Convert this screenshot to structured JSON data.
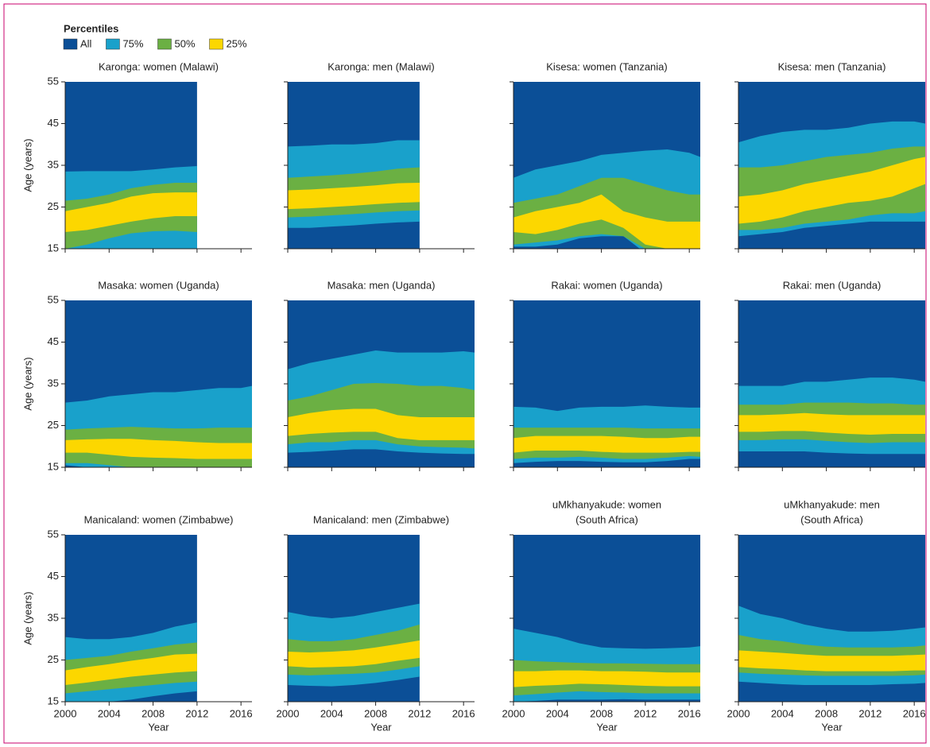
{
  "legend": {
    "title": "Percentiles",
    "series": [
      {
        "name": "All",
        "color": "#0b4f97"
      },
      {
        "name": "75%",
        "color": "#19a1cb"
      },
      {
        "name": "50%",
        "color": "#6bb043"
      },
      {
        "name": "25%",
        "color": "#fcd700"
      }
    ]
  },
  "chart_data": [
    {
      "type": "area",
      "title": "Karonga: women (Malawi)",
      "ylabel": "Age (years)",
      "x": [
        2000,
        2002,
        2004,
        2006,
        2008,
        2010,
        2012
      ],
      "xlim": [
        2000,
        2017
      ],
      "ylim": [
        15,
        55
      ],
      "yticks": [
        15,
        25,
        35,
        45,
        55
      ],
      "bands": [
        {
          "low": [
            13,
            13,
            13.5,
            14,
            14.5,
            14.5,
            14.5
          ],
          "high": [
            33.5,
            33.6,
            33.6,
            33.6,
            34,
            34.5,
            34.8
          ]
        },
        {
          "low": [
            15,
            16,
            17.5,
            18.7,
            19.2,
            19.3,
            19
          ],
          "high": [
            26.5,
            27,
            28,
            29.5,
            30.3,
            30.8,
            30.8
          ]
        },
        {
          "low": [
            19,
            19.5,
            20.5,
            21.5,
            22.3,
            22.8,
            22.8
          ],
          "high": [
            24,
            25,
            26,
            27.5,
            28.3,
            28.5,
            28.5
          ]
        }
      ]
    },
    {
      "type": "area",
      "title": "Karonga: men (Malawi)",
      "x": [
        2000,
        2002,
        2004,
        2006,
        2008,
        2010,
        2012
      ],
      "xlim": [
        2000,
        2017
      ],
      "ylim": [
        15,
        55
      ],
      "bands": [
        {
          "low": [
            20,
            20,
            20.3,
            20.6,
            21,
            21.3,
            21.5
          ],
          "high": [
            39.5,
            39.7,
            40,
            40,
            40.3,
            41,
            41
          ]
        },
        {
          "low": [
            22.5,
            22.7,
            23,
            23.3,
            23.7,
            24,
            24.2
          ],
          "high": [
            32,
            32.3,
            32.6,
            33,
            33.5,
            34.2,
            34.5
          ]
        },
        {
          "low": [
            24.5,
            24.7,
            25,
            25.3,
            25.7,
            26,
            26.2
          ],
          "high": [
            29,
            29.2,
            29.5,
            29.8,
            30.2,
            30.7,
            30.8
          ]
        }
      ]
    },
    {
      "type": "area",
      "title": "Kisesa: women (Tanzania)",
      "x": [
        2000,
        2002,
        2004,
        2006,
        2008,
        2010,
        2012,
        2014,
        2016,
        2017
      ],
      "xlim": [
        2000,
        2017
      ],
      "ylim": [
        15,
        55
      ],
      "bands": [
        {
          "low": [
            15.5,
            15.5,
            16,
            17.5,
            18,
            18,
            14,
            12,
            12,
            12
          ],
          "high": [
            32,
            34,
            35,
            36,
            37.5,
            38,
            38.5,
            38.8,
            38,
            37
          ]
        },
        {
          "low": [
            16,
            16.5,
            17,
            18,
            18.5,
            18,
            15,
            13,
            14,
            14
          ],
          "high": [
            26,
            27,
            28,
            30,
            32,
            32,
            30.5,
            29,
            28,
            28
          ]
        },
        {
          "low": [
            19,
            18.5,
            19.5,
            21,
            22,
            20,
            16,
            15,
            15,
            15
          ],
          "high": [
            22.5,
            24,
            25,
            26,
            28,
            24,
            22.5,
            21.5,
            21.5,
            21.5
          ]
        }
      ]
    },
    {
      "type": "area",
      "title": "Kisesa: men (Tanzania)",
      "x": [
        2000,
        2002,
        2004,
        2006,
        2008,
        2010,
        2012,
        2014,
        2016,
        2017
      ],
      "xlim": [
        2000,
        2017
      ],
      "ylim": [
        15,
        55
      ],
      "bands": [
        {
          "low": [
            18,
            18.5,
            19,
            20,
            20.5,
            21,
            21.5,
            21.5,
            21.5,
            21.5
          ],
          "high": [
            40.5,
            42,
            43,
            43.5,
            43.5,
            44,
            45,
            45.5,
            45.5,
            45
          ]
        },
        {
          "low": [
            19.5,
            19.5,
            20,
            21,
            21.5,
            22,
            23,
            23.5,
            23.5,
            24
          ],
          "high": [
            34.5,
            34.5,
            35,
            36,
            37,
            37.5,
            38,
            39,
            39.5,
            39.5
          ]
        },
        {
          "low": [
            21,
            21.5,
            22.5,
            24,
            25,
            26,
            26.5,
            27.5,
            29.5,
            30.5
          ],
          "high": [
            27.5,
            28,
            29,
            30.5,
            31.5,
            32.5,
            33.5,
            35,
            36.5,
            37
          ]
        }
      ]
    },
    {
      "type": "area",
      "title": "Masaka: women (Uganda)",
      "ylabel": "Age (years)",
      "x": [
        2000,
        2002,
        2004,
        2006,
        2008,
        2010,
        2012,
        2014,
        2016,
        2017
      ],
      "xlim": [
        2000,
        2017
      ],
      "ylim": [
        15,
        55
      ],
      "yticks": [
        15,
        25,
        35,
        45,
        55
      ],
      "bands": [
        {
          "low": [
            15.5,
            15,
            14.5,
            14,
            14,
            14,
            14,
            14,
            14,
            14
          ],
          "high": [
            30.5,
            31,
            32,
            32.5,
            33,
            33,
            33.5,
            34,
            34,
            34.5
          ]
        },
        {
          "low": [
            16,
            16,
            15.5,
            15,
            14.5,
            14.5,
            14.5,
            14.5,
            15,
            15
          ],
          "high": [
            24,
            24.3,
            24.5,
            24.7,
            24.5,
            24.3,
            24.3,
            24.5,
            24.5,
            24.5
          ]
        },
        {
          "low": [
            18.5,
            18.5,
            18,
            17.5,
            17.3,
            17.2,
            17,
            17,
            17,
            17
          ],
          "high": [
            21.5,
            21.7,
            21.8,
            21.8,
            21.5,
            21.3,
            21,
            20.8,
            20.8,
            20.8
          ]
        }
      ]
    },
    {
      "type": "area",
      "title": "Masaka: men (Uganda)",
      "x": [
        2000,
        2002,
        2004,
        2006,
        2008,
        2010,
        2012,
        2014,
        2016,
        2017
      ],
      "xlim": [
        2000,
        2017
      ],
      "ylim": [
        15,
        55
      ],
      "bands": [
        {
          "low": [
            18.5,
            18.7,
            19,
            19.3,
            19.3,
            18.8,
            18.5,
            18.3,
            18.2,
            18.2
          ],
          "high": [
            38.5,
            40,
            41,
            42,
            43,
            42.5,
            42.5,
            42.5,
            42.8,
            42.5
          ]
        },
        {
          "low": [
            20.5,
            21,
            21,
            21.5,
            21.5,
            20.5,
            20,
            19.8,
            19.7,
            19.5
          ],
          "high": [
            31,
            32,
            33.5,
            35,
            35.2,
            35,
            34.5,
            34.5,
            34,
            33.5
          ]
        },
        {
          "low": [
            22.5,
            23,
            23.3,
            23.5,
            23.5,
            22,
            21.5,
            21.5,
            21.5,
            21.5
          ],
          "high": [
            27,
            28,
            28.7,
            29,
            29,
            27.5,
            27,
            27,
            27,
            27
          ]
        }
      ]
    },
    {
      "type": "area",
      "title": "Rakai: women (Uganda)",
      "x": [
        2000,
        2002,
        2004,
        2006,
        2008,
        2010,
        2012,
        2014,
        2016,
        2017
      ],
      "xlim": [
        2000,
        2017
      ],
      "ylim": [
        15,
        55
      ],
      "bands": [
        {
          "low": [
            16,
            16.3,
            16.5,
            16.5,
            16.3,
            16.2,
            16.2,
            16.5,
            17,
            17
          ],
          "high": [
            29.5,
            29.3,
            28.5,
            29.3,
            29.5,
            29.5,
            29.8,
            29.5,
            29.3,
            29.3
          ]
        },
        {
          "low": [
            17,
            17.3,
            17.3,
            17.5,
            17.3,
            17,
            17,
            17.3,
            17.7,
            17.5
          ],
          "high": [
            24.5,
            24.5,
            24.5,
            24.5,
            24.5,
            24.5,
            24.3,
            24.3,
            24.3,
            24.3
          ]
        },
        {
          "low": [
            18.5,
            19,
            19,
            19,
            18.7,
            18.5,
            18.5,
            18.5,
            18.7,
            18.7
          ],
          "high": [
            22,
            22.5,
            22.5,
            22.5,
            22.5,
            22.3,
            22,
            22,
            22.3,
            22.3
          ]
        }
      ]
    },
    {
      "type": "area",
      "title": "Rakai: men (Uganda)",
      "x": [
        2000,
        2002,
        2004,
        2006,
        2008,
        2010,
        2012,
        2014,
        2016,
        2017
      ],
      "xlim": [
        2000,
        2017
      ],
      "ylim": [
        15,
        55
      ],
      "bands": [
        {
          "low": [
            18.8,
            18.8,
            18.8,
            18.8,
            18.5,
            18.3,
            18.2,
            18.2,
            18.2,
            18.2
          ],
          "high": [
            34.5,
            34.5,
            34.5,
            35.5,
            35.5,
            36,
            36.5,
            36.5,
            36,
            35.5
          ]
        },
        {
          "low": [
            21.5,
            21.5,
            21.7,
            21.7,
            21.3,
            21,
            20.8,
            21,
            21,
            21
          ],
          "high": [
            30,
            30,
            30,
            30.5,
            30.5,
            30.5,
            30.3,
            30.3,
            30,
            30
          ]
        },
        {
          "low": [
            23.5,
            23.5,
            23.7,
            23.7,
            23.3,
            23,
            22.8,
            23,
            23,
            23
          ],
          "high": [
            27.5,
            27.5,
            27.7,
            28,
            27.7,
            27.5,
            27.5,
            27.5,
            27.5,
            27.5
          ]
        }
      ]
    },
    {
      "type": "area",
      "title": "Manicaland: women (Zimbabwe)",
      "ylabel": "Age (years)",
      "xlabel": "Year",
      "x": [
        2000,
        2002,
        2004,
        2006,
        2008,
        2010,
        2012
      ],
      "xlim": [
        2000,
        2017
      ],
      "ylim": [
        15,
        55
      ],
      "yticks": [
        15,
        25,
        35,
        45,
        55
      ],
      "xticks": [
        2000,
        2004,
        2008,
        2012,
        2016
      ],
      "bands": [
        {
          "low": [
            14.5,
            14.8,
            15,
            15.5,
            16.3,
            17,
            17.5
          ],
          "high": [
            30.5,
            30,
            30,
            30.5,
            31.5,
            33,
            34
          ]
        },
        {
          "low": [
            17,
            17.5,
            18,
            18.5,
            19,
            19.5,
            19.8
          ],
          "high": [
            25,
            25.5,
            26,
            27,
            27.8,
            28.7,
            29.2
          ]
        },
        {
          "low": [
            19,
            19.6,
            20.3,
            21,
            21.5,
            22,
            22.3
          ],
          "high": [
            22.5,
            23.3,
            24,
            24.8,
            25.5,
            26.3,
            26.5
          ]
        }
      ]
    },
    {
      "type": "area",
      "title": "Manicaland: men (Zimbabwe)",
      "xlabel": "Year",
      "x": [
        2000,
        2002,
        2004,
        2006,
        2008,
        2010,
        2012
      ],
      "xlim": [
        2000,
        2017
      ],
      "ylim": [
        15,
        55
      ],
      "xticks": [
        2000,
        2004,
        2008,
        2012,
        2016
      ],
      "bands": [
        {
          "low": [
            19,
            18.8,
            18.7,
            19,
            19.5,
            20.2,
            21
          ],
          "high": [
            36.5,
            35.5,
            35,
            35.5,
            36.5,
            37.5,
            38.5
          ]
        },
        {
          "low": [
            21.5,
            21.3,
            21.5,
            21.7,
            22,
            22.7,
            23.5
          ],
          "high": [
            30,
            29.5,
            29.5,
            30,
            31,
            32,
            33.5
          ]
        },
        {
          "low": [
            23.5,
            23.2,
            23.3,
            23.5,
            24,
            24.8,
            25.5
          ],
          "high": [
            27,
            26.8,
            27,
            27.3,
            28,
            28.8,
            29.7
          ]
        }
      ]
    },
    {
      "type": "area",
      "title": [
        "uMkhanyakude: women",
        "(South Africa)"
      ],
      "xlabel": "Year",
      "x": [
        2000,
        2002,
        2004,
        2006,
        2008,
        2010,
        2012,
        2014,
        2016,
        2017
      ],
      "xlim": [
        2000,
        2017
      ],
      "ylim": [
        15,
        55
      ],
      "xticks": [
        2000,
        2004,
        2008,
        2012,
        2016
      ],
      "bands": [
        {
          "low": [
            15,
            15.2,
            15.5,
            15.5,
            15.5,
            15.6,
            15.5,
            15.5,
            15.5,
            15.5
          ],
          "high": [
            32.5,
            31.5,
            30.5,
            29,
            28,
            27.8,
            27.7,
            27.8,
            28,
            28.3
          ]
        },
        {
          "low": [
            16.5,
            16.8,
            17.2,
            17.5,
            17.3,
            17.2,
            17,
            17,
            17,
            17
          ],
          "high": [
            25,
            24.7,
            24.5,
            24.3,
            24.2,
            24.2,
            24.1,
            24,
            24,
            24
          ]
        },
        {
          "low": [
            18.5,
            18.8,
            19,
            19.3,
            19.2,
            19,
            18.8,
            18.7,
            18.7,
            18.7
          ],
          "high": [
            22.3,
            22.3,
            22.5,
            22.5,
            22.3,
            22.3,
            22.2,
            22,
            22,
            22
          ]
        }
      ]
    },
    {
      "type": "area",
      "title": [
        "uMkhanyakude: men",
        "(South Africa)"
      ],
      "xlabel": "Year",
      "x": [
        2000,
        2002,
        2004,
        2006,
        2008,
        2010,
        2012,
        2014,
        2016,
        2017
      ],
      "xlim": [
        2000,
        2017
      ],
      "ylim": [
        15,
        55
      ],
      "xticks": [
        2000,
        2004,
        2008,
        2012,
        2016
      ],
      "bands": [
        {
          "low": [
            19.8,
            19.5,
            19.2,
            19,
            19,
            19,
            19,
            19.2,
            19.3,
            19.5
          ],
          "high": [
            38,
            36,
            35,
            33.5,
            32.5,
            31.8,
            31.8,
            32,
            32.5,
            32.8
          ]
        },
        {
          "low": [
            22,
            21.7,
            21.5,
            21.3,
            21.2,
            21.2,
            21.2,
            21.2,
            21.3,
            21.5
          ],
          "high": [
            31,
            30,
            29.5,
            28.7,
            28.2,
            28,
            28,
            28,
            28.2,
            28.5
          ]
        },
        {
          "low": [
            23.3,
            23,
            22.8,
            22.5,
            22.3,
            22.3,
            22.3,
            22.3,
            22.5,
            22.5
          ],
          "high": [
            27.3,
            27,
            26.7,
            26.3,
            26,
            26,
            26,
            26,
            26.2,
            26.3
          ]
        }
      ]
    }
  ]
}
